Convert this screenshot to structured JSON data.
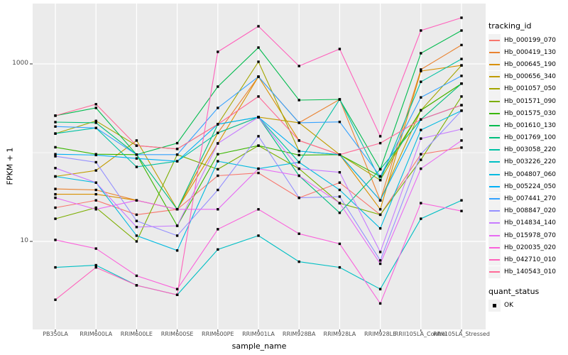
{
  "chart_data": {
    "type": "line",
    "title": "",
    "xlabel": "sample_name",
    "ylabel": "FPKM + 1",
    "y_scale": "log10",
    "ylim": [
      1.05,
      4800
    ],
    "grid": true,
    "legend_position": "right",
    "x_categories": [
      "PB350LA",
      "RRIM600LA",
      "RRIM600LE",
      "RRIM600SE",
      "RRIM600PE",
      "RRIM901LA",
      "RRIM928BA",
      "RRIM928LA",
      "RRIM928LE",
      "RRII105LA_Control",
      "RRII105LA_Stressed"
    ],
    "y_ticks": [
      {
        "label": "10",
        "value": 10
      },
      {
        "label": "1000",
        "value": 1000
      }
    ],
    "y_minor": [
      100
    ],
    "legend_color": {
      "title": "tracking_id"
    },
    "legend_shape": {
      "title": "quant_status",
      "items": [
        "OK"
      ]
    },
    "series": [
      {
        "name": "Hb_000199_070",
        "color": "#F8766D",
        "values": [
          24,
          29,
          20,
          23,
          55,
          59,
          31,
          46,
          20,
          96,
          114
        ]
      },
      {
        "name": "Hb_000419_130",
        "color": "#EA8331",
        "values": [
          39,
          38,
          29,
          23,
          167,
          718,
          217,
          398,
          29,
          864,
          1632
        ]
      },
      {
        "name": "Hb_000645_190",
        "color": "#D89000",
        "values": [
          34,
          34,
          29,
          23,
          127,
          718,
          137,
          95,
          23,
          830,
          962
        ]
      },
      {
        "name": "Hb_000656_340",
        "color": "#C09B00",
        "values": [
          54,
          63,
          137,
          23,
          167,
          251,
          217,
          95,
          29,
          300,
          599
        ]
      },
      {
        "name": "Hb_001057_050",
        "color": "#A3A500",
        "values": [
          164,
          228,
          120,
          110,
          209,
          1057,
          104,
          95,
          49,
          300,
          962
        ]
      },
      {
        "name": "Hb_001571_090",
        "color": "#7CAE00",
        "values": [
          18,
          24,
          10,
          95,
          65,
          120,
          66,
          27,
          20,
          83,
          429
        ]
      },
      {
        "name": "Hb_001575_030",
        "color": "#39B600",
        "values": [
          115,
          96,
          95,
          15,
          96,
          120,
          94,
          95,
          54,
          300,
          599
        ]
      },
      {
        "name": "Hb_001610_130",
        "color": "#00BB4E",
        "values": [
          261,
          319,
          95,
          128,
          555,
          1528,
          391,
          398,
          65,
          1318,
          2377
        ]
      },
      {
        "name": "Hb_001769_100",
        "color": "#00BF7D",
        "values": [
          221,
          217,
          95,
          23,
          209,
          251,
          55,
          21,
          65,
          237,
          599
        ]
      },
      {
        "name": "Hb_003058_220",
        "color": "#00C1A3",
        "values": [
          164,
          190,
          69,
          80,
          167,
          251,
          78,
          398,
          49,
          629,
          1135
        ]
      },
      {
        "name": "Hb_003226_220",
        "color": "#00BFC4",
        "values": [
          5.1,
          5.4,
          3.2,
          2.5,
          8.1,
          11.6,
          5.9,
          5.1,
          2.9,
          18,
          29
        ]
      },
      {
        "name": "Hb_004807_060",
        "color": "#00BAE0",
        "values": [
          54,
          46,
          11.6,
          7.9,
          80,
          66,
          78,
          38,
          14,
          180,
          297
        ]
      },
      {
        "name": "Hb_005224_050",
        "color": "#00B0F6",
        "values": [
          96,
          94,
          86,
          80,
          209,
          251,
          104,
          95,
          29,
          237,
          343
        ]
      },
      {
        "name": "Hb_007441_270",
        "color": "#35A2FF",
        "values": [
          197,
          190,
          95,
          95,
          319,
          718,
          217,
          222,
          54,
          419,
          733
        ]
      },
      {
        "name": "Hb_008847_020",
        "color": "#9590FF",
        "values": [
          91,
          78,
          17,
          11.6,
          38,
          153,
          31,
          32,
          6.1,
          96,
          297
        ]
      },
      {
        "name": "Hb_014834_140",
        "color": "#C77CFF",
        "values": [
          67,
          46,
          14.5,
          15,
          127,
          251,
          66,
          60,
          7.6,
          144,
          184
        ]
      },
      {
        "name": "Hb_015978_070",
        "color": "#E76BF3",
        "values": [
          31,
          23,
          29,
          23,
          23,
          66,
          55,
          27,
          5.6,
          66,
          137
        ]
      },
      {
        "name": "Hb_020035_020",
        "color": "#FA62DB",
        "values": [
          10.4,
          8.3,
          4.1,
          2.9,
          13.7,
          23,
          12.2,
          9.4,
          2.0,
          27,
          22
        ]
      },
      {
        "name": "Hb_042710_010",
        "color": "#FF62BC",
        "values": [
          2.2,
          5.1,
          3.2,
          2.5,
          1368,
          2655,
          946,
          1472,
          153,
          2377,
          3311
        ]
      },
      {
        "name": "Hb_140543_010",
        "color": "#FF6A98",
        "values": [
          261,
          351,
          120,
          110,
          209,
          429,
          137,
          95,
          128,
          237,
          343
        ]
      }
    ]
  },
  "style": {
    "panel_bg": "#EBEBEB",
    "grid_color": "#FFFFFF",
    "point_color": "#000000",
    "tick_color": "#333333",
    "axis_text_color": "#4D4D4D",
    "key_bg": "#F2F2F2"
  }
}
